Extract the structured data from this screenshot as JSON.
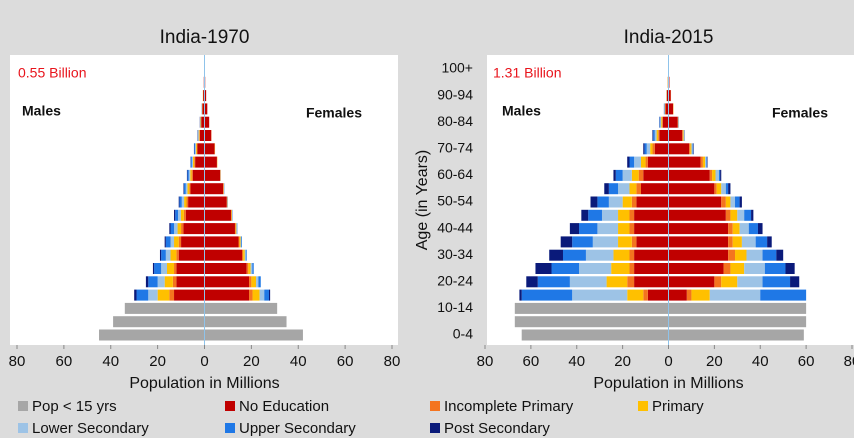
{
  "chart_data": [
    {
      "type": "population-pyramid",
      "title": "India-1970",
      "annotation": "0.55 Billion",
      "left_label": "Males",
      "right_label": "Females",
      "xlabel": "Population in Millions",
      "xlim": [
        -80,
        80
      ],
      "xticks": [
        {
          "value": -80,
          "label": "80"
        },
        {
          "value": -60,
          "label": "60"
        },
        {
          "value": -40,
          "label": "40"
        },
        {
          "value": -20,
          "label": "20"
        },
        0,
        20,
        40,
        60,
        80
      ],
      "series": [
        {
          "name": "Pop < 15 yrs",
          "color": "#a6a6a6",
          "males": [
            -45,
            -39,
            -34,
            null,
            null,
            null,
            null,
            null,
            null,
            null,
            null,
            null,
            null,
            null,
            null,
            null,
            null,
            null,
            null,
            null,
            null
          ],
          "females": [
            42,
            35,
            31,
            null,
            null,
            null,
            null,
            null,
            null,
            null,
            null,
            null,
            null,
            null,
            null,
            null,
            null,
            null,
            null,
            null,
            null
          ]
        },
        {
          "name": "No Education",
          "color": "#c00000",
          "males": [
            null,
            null,
            null,
            -13,
            -12,
            -12,
            -11,
            -10,
            -9,
            -8,
            -7,
            -6,
            -5,
            -4,
            -3,
            -2,
            -1.4,
            -0.9,
            -0.6,
            -0.3,
            -0.1
          ],
          "females": [
            null,
            null,
            null,
            19,
            19,
            18,
            16,
            14.5,
            13,
            11.3,
            9.5,
            8,
            6.7,
            5.3,
            4.3,
            2.9,
            2,
            1.2,
            0.7,
            0.3,
            0.1
          ]
        },
        {
          "name": "Incomplete Primary",
          "color": "#f4741f",
          "males": [
            null,
            null,
            null,
            -2,
            -1.5,
            -1,
            -1,
            -1,
            -1,
            -0.8,
            -0.7,
            -0.5,
            -0.5,
            -0.4,
            -0.3,
            -0.2,
            -0.1,
            -0.1,
            0,
            0,
            0
          ],
          "females": [
            null,
            null,
            null,
            1.5,
            1,
            0.7,
            0.5,
            0.4,
            0.3,
            0.2,
            0.2,
            0.2,
            0.1,
            0.1,
            0.1,
            0.1,
            0,
            0,
            0,
            0,
            0
          ]
        },
        {
          "name": "Primary",
          "color": "#ffc000",
          "males": [
            null,
            null,
            null,
            -5,
            -3.5,
            -3,
            -2.5,
            -2,
            -1.5,
            -1.3,
            -1,
            -0.8,
            -0.6,
            -0.5,
            -0.4,
            -0.3,
            -0.2,
            -0.1,
            -0.1,
            0,
            0
          ],
          "females": [
            null,
            null,
            null,
            3,
            2,
            1,
            0.7,
            0.5,
            0.3,
            0.2,
            0.1,
            0.1,
            0.1,
            0.1,
            0.1,
            0,
            0,
            0,
            0,
            0,
            0
          ]
        },
        {
          "name": "Lower Secondary",
          "color": "#9dc3e6",
          "males": [
            null,
            null,
            null,
            -4,
            -3,
            -2.5,
            -2,
            -1.5,
            -1.5,
            -1.2,
            -1,
            -0.7,
            -0.6,
            -0.5,
            -0.3,
            -0.2,
            -0.1,
            0,
            0,
            0,
            0
          ],
          "females": [
            null,
            null,
            null,
            2,
            1,
            0.7,
            0.4,
            0.3,
            0.2,
            0.2,
            0.1,
            0.1,
            0.1,
            0,
            0,
            0,
            0,
            0,
            0,
            0,
            0
          ]
        },
        {
          "name": "Upper Secondary",
          "color": "#1f78e6",
          "males": [
            null,
            null,
            null,
            -5,
            -4,
            -3,
            -2,
            -2,
            -1.5,
            -1.2,
            -1,
            -0.8,
            -0.6,
            -0.5,
            -0.4,
            -0.2,
            -0.1,
            -0.1,
            0,
            0,
            0
          ],
          "females": [
            null,
            null,
            null,
            2,
            1,
            0.6,
            0.4,
            0.3,
            0.2,
            0.1,
            0.1,
            0.1,
            0,
            0,
            0,
            0,
            0,
            0,
            0,
            0,
            0
          ]
        },
        {
          "name": "Post Secondary",
          "color": "#0a1a7a",
          "males": [
            null,
            null,
            null,
            -1,
            -1,
            -0.5,
            -0.5,
            -0.5,
            -0.5,
            -0.5,
            -0.3,
            -0.2,
            -0.2,
            -0.1,
            -0.1,
            -0.1,
            -0.1,
            0,
            0,
            0,
            0
          ],
          "females": [
            null,
            null,
            null,
            0.5,
            0,
            0,
            0,
            0,
            0,
            0,
            0,
            0,
            0,
            0,
            0,
            0,
            0,
            0,
            0,
            0,
            0
          ]
        }
      ]
    },
    {
      "type": "population-pyramid",
      "title": "India-2015",
      "annotation": "1.31 Billion",
      "left_label": "Males",
      "right_label": "Females",
      "xlabel": "Population in Millions",
      "ylabel": "Age (in Years)",
      "categories": [
        "0-4",
        null,
        "10-14",
        null,
        "20-24",
        null,
        "30-34",
        null,
        "40-44",
        null,
        "50-54",
        null,
        "60-64",
        null,
        "70-74",
        null,
        "80-84",
        null,
        "90-94",
        null,
        "100+"
      ],
      "xlim": [
        -80,
        80
      ],
      "xticks": [
        {
          "value": -80,
          "label": "80"
        },
        {
          "value": -60,
          "label": "60"
        },
        {
          "value": -40,
          "label": "40"
        },
        {
          "value": -20,
          "label": "20"
        },
        0,
        20,
        40,
        60,
        80
      ],
      "series": [
        {
          "color": "#a6a6a6",
          "males": [
            -64,
            -67,
            -67,
            null,
            null,
            null,
            null,
            null,
            null,
            null,
            null,
            null,
            null,
            null,
            null,
            null,
            null,
            null,
            null,
            null,
            null
          ],
          "females": [
            59,
            60,
            60,
            null,
            null,
            null,
            null,
            null,
            null,
            null,
            null,
            null,
            null,
            null,
            null,
            null,
            null,
            null,
            null,
            null,
            null
          ]
        },
        {
          "color": "#c00000",
          "males": [
            null,
            null,
            null,
            -9,
            -15,
            -15,
            -15,
            -14,
            -15,
            -15,
            -14,
            -12,
            -11,
            -9,
            -6,
            -4,
            -2.5,
            -1.3,
            -0.7,
            -0.3,
            -0.2
          ],
          "females": [
            null,
            null,
            null,
            8,
            20,
            24,
            26,
            26,
            26,
            25,
            23,
            20,
            18,
            14,
            9,
            6,
            4,
            2,
            1,
            0.4,
            0.2
          ]
        },
        {
          "color": "#f4741f",
          "males": [
            null,
            null,
            null,
            -2,
            -3,
            -2,
            -2,
            -2,
            -2,
            -2,
            -2,
            -2,
            -2,
            -1,
            -1,
            -0.5,
            -0.3,
            -0.1,
            -0.1,
            0,
            0
          ],
          "females": [
            null,
            null,
            null,
            2,
            3,
            3,
            3,
            2,
            2,
            2,
            2,
            1,
            1,
            1,
            0.5,
            0.3,
            0.2,
            0.1,
            0.1,
            0,
            0
          ]
        },
        {
          "color": "#ffc000",
          "males": [
            null,
            null,
            null,
            -7,
            -9,
            -8,
            -7,
            -6,
            -5,
            -5,
            -4,
            -3,
            -3,
            -2,
            -1,
            -0.7,
            -0.4,
            -0.2,
            -0.1,
            -0.1,
            0
          ],
          "females": [
            null,
            null,
            null,
            8,
            7,
            6,
            5,
            4,
            3,
            3,
            2,
            2,
            1.5,
            1,
            0.5,
            0.3,
            0.1,
            0.1,
            0,
            0,
            0
          ]
        },
        {
          "color": "#9dc3e6",
          "males": [
            null,
            null,
            null,
            -24,
            -16,
            -14,
            -12,
            -11,
            -9,
            -7,
            -6,
            -5,
            -4,
            -3,
            -1.5,
            -0.8,
            -0.4,
            -0.2,
            -0.1,
            0,
            0
          ],
          "females": [
            null,
            null,
            null,
            22,
            11,
            9,
            7,
            6,
            4,
            3,
            2,
            2,
            1.5,
            0.5,
            0.5,
            0.2,
            0.1,
            0,
            0,
            0,
            0
          ]
        },
        {
          "color": "#1f78e6",
          "males": [
            null,
            null,
            null,
            -22,
            -14,
            -12,
            -10,
            -9,
            -8,
            -6,
            -5,
            -4,
            -3,
            -2,
            -1,
            -0.7,
            -0.3,
            -0.1,
            0,
            0,
            0
          ],
          "females": [
            null,
            null,
            null,
            20,
            12,
            9,
            6,
            5,
            4,
            3,
            2,
            1,
            0.5,
            0.3,
            0.3,
            0.1,
            0.1,
            0,
            0,
            0,
            0
          ]
        },
        {
          "color": "#0a1a7a",
          "males": [
            null,
            null,
            null,
            -1,
            -5,
            -7,
            -6,
            -5,
            -4,
            -3,
            -3,
            -2,
            -1,
            -1,
            -0.5,
            -0.3,
            -0.1,
            -0.1,
            0,
            0,
            0
          ],
          "females": [
            null,
            null,
            null,
            0,
            4,
            4,
            3,
            2,
            2,
            1,
            1,
            1,
            0.5,
            0.2,
            0.2,
            0.1,
            0,
            0,
            0,
            0,
            0
          ]
        }
      ]
    }
  ]
}
